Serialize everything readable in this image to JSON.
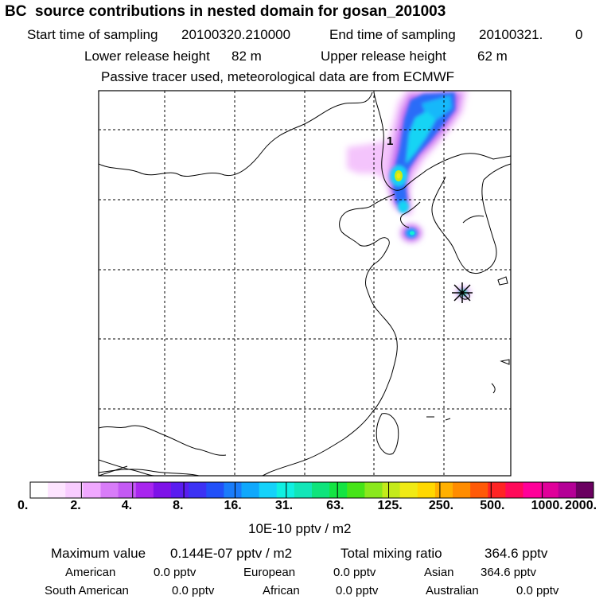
{
  "header": {
    "title": "BC  source contributions in nested domain for gosan_201003",
    "start_label": "Start time of sampling",
    "start_value": "20100320.210000",
    "end_label": "End time of sampling",
    "end_value": "20100321.",
    "end_value_extra": "0",
    "lower_label": "Lower release height",
    "lower_value": "82 m",
    "upper_label": "Upper release height",
    "upper_value": "62 m",
    "note": "Passive tracer used, meteorological data are from ECMWF"
  },
  "map": {
    "region_label": "1",
    "receptor_marker": "star-icon"
  },
  "colorbar": {
    "colors": [
      "#ffffff",
      "#fde4ff",
      "#f8ccff",
      "#f0a8ff",
      "#d87cf8",
      "#c45af4",
      "#a826ee",
      "#7e12e8",
      "#5a1cf0",
      "#3c32f4",
      "#2250f8",
      "#1a7cfa",
      "#10a8fc",
      "#14d2fa",
      "#10f0e2",
      "#12e6b8",
      "#0ee47c",
      "#14e442",
      "#46e418",
      "#8ae81c",
      "#c4ea1a",
      "#f0ea14",
      "#ffd800",
      "#ffb000",
      "#ff8c00",
      "#ff5a08",
      "#ff2424",
      "#ff0a5a",
      "#ff0099",
      "#e0009a",
      "#b40096",
      "#6a0060"
    ],
    "ticks": [
      "0.",
      "2.",
      "4.",
      "8.",
      "16.",
      "31.",
      "63.",
      "125.",
      "250.",
      "500.",
      "1000.",
      "2000."
    ],
    "unit": "10E-10 pptv / m2"
  },
  "stats": {
    "max_label": "Maximum value",
    "max_value": "0.144E-07 pptv / m2",
    "total_label": "Total mixing ratio",
    "total_value": "364.6 pptv"
  },
  "regions": [
    {
      "name": "American",
      "value": "0.0 pptv"
    },
    {
      "name": "European",
      "value": "0.0 pptv"
    },
    {
      "name": "Asian",
      "value": "364.6 pptv"
    },
    {
      "name": "South American",
      "value": "0.0 pptv"
    },
    {
      "name": "African",
      "value": "0.0 pptv"
    },
    {
      "name": "Australian",
      "value": "0.0 pptv"
    }
  ]
}
